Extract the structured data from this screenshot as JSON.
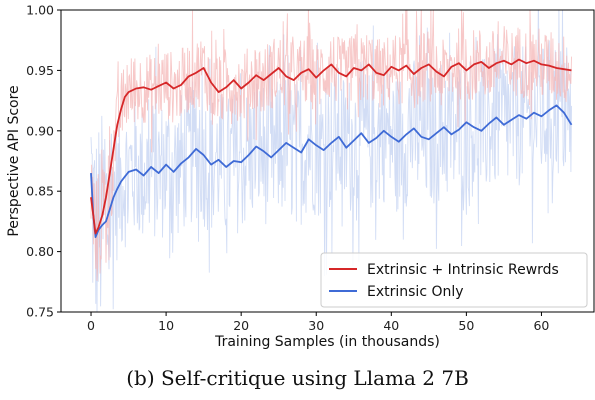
{
  "caption": "(b) Self-critique using Llama 2 7B",
  "chart_data": {
    "type": "line",
    "title": "",
    "xlabel": "Training Samples (in thousands)",
    "ylabel": "Perspective API Score",
    "xlim": [
      -4,
      67
    ],
    "ylim": [
      0.75,
      1.0
    ],
    "xticks": [
      0,
      10,
      20,
      30,
      40,
      50,
      60
    ],
    "yticks": [
      0.75,
      0.8,
      0.85,
      0.9,
      0.95,
      1.0
    ],
    "ytick_labels": [
      "0.75",
      "0.80",
      "0.85",
      "0.90",
      "0.95",
      "1.00"
    ],
    "legend_position": "lower-right",
    "series": [
      {
        "name": "Extrinsic + Intrinsic Rewrds",
        "color": "#d62728",
        "x": [
          0,
          0.3,
          0.6,
          1,
          1.5,
          2,
          2.5,
          3,
          3.5,
          4,
          4.5,
          5,
          6,
          7,
          8,
          9,
          10,
          11,
          12,
          13,
          14,
          15,
          16,
          17,
          18,
          19,
          20,
          21,
          22,
          23,
          24,
          25,
          26,
          27,
          28,
          29,
          30,
          31,
          32,
          33,
          34,
          35,
          36,
          37,
          38,
          39,
          40,
          41,
          42,
          43,
          44,
          45,
          46,
          47,
          48,
          49,
          50,
          51,
          52,
          53,
          54,
          55,
          56,
          57,
          58,
          59,
          60,
          61,
          62,
          63,
          64
        ],
        "y": [
          0.845,
          0.83,
          0.815,
          0.82,
          0.83,
          0.845,
          0.865,
          0.885,
          0.905,
          0.918,
          0.928,
          0.932,
          0.935,
          0.936,
          0.934,
          0.937,
          0.94,
          0.935,
          0.938,
          0.945,
          0.948,
          0.952,
          0.94,
          0.932,
          0.936,
          0.942,
          0.935,
          0.94,
          0.946,
          0.942,
          0.947,
          0.952,
          0.945,
          0.942,
          0.948,
          0.951,
          0.944,
          0.95,
          0.955,
          0.948,
          0.945,
          0.952,
          0.95,
          0.955,
          0.948,
          0.946,
          0.953,
          0.95,
          0.954,
          0.947,
          0.952,
          0.955,
          0.949,
          0.945,
          0.953,
          0.956,
          0.95,
          0.955,
          0.957,
          0.952,
          0.956,
          0.958,
          0.955,
          0.959,
          0.956,
          0.958,
          0.955,
          0.954,
          0.952,
          0.951,
          0.95
        ]
      },
      {
        "name": "Extrinsic Only",
        "color": "#3f6bd6",
        "x": [
          0,
          0.3,
          0.6,
          1,
          1.5,
          2,
          2.5,
          3,
          3.5,
          4,
          4.5,
          5,
          6,
          7,
          8,
          9,
          10,
          11,
          12,
          13,
          14,
          15,
          16,
          17,
          18,
          19,
          20,
          21,
          22,
          23,
          24,
          25,
          26,
          27,
          28,
          29,
          30,
          31,
          32,
          33,
          34,
          35,
          36,
          37,
          38,
          39,
          40,
          41,
          42,
          43,
          44,
          45,
          46,
          47,
          48,
          49,
          50,
          51,
          52,
          53,
          54,
          55,
          56,
          57,
          58,
          59,
          60,
          61,
          62,
          63,
          64
        ],
        "y": [
          0.865,
          0.83,
          0.812,
          0.818,
          0.822,
          0.825,
          0.835,
          0.845,
          0.852,
          0.858,
          0.862,
          0.866,
          0.868,
          0.863,
          0.87,
          0.865,
          0.872,
          0.866,
          0.873,
          0.878,
          0.885,
          0.88,
          0.872,
          0.876,
          0.87,
          0.875,
          0.874,
          0.88,
          0.887,
          0.883,
          0.878,
          0.884,
          0.89,
          0.886,
          0.882,
          0.893,
          0.888,
          0.884,
          0.89,
          0.895,
          0.886,
          0.892,
          0.898,
          0.89,
          0.894,
          0.9,
          0.895,
          0.891,
          0.897,
          0.902,
          0.895,
          0.893,
          0.898,
          0.903,
          0.897,
          0.901,
          0.907,
          0.903,
          0.9,
          0.906,
          0.911,
          0.905,
          0.909,
          0.913,
          0.91,
          0.915,
          0.912,
          0.917,
          0.921,
          0.915,
          0.905
        ]
      }
    ]
  }
}
